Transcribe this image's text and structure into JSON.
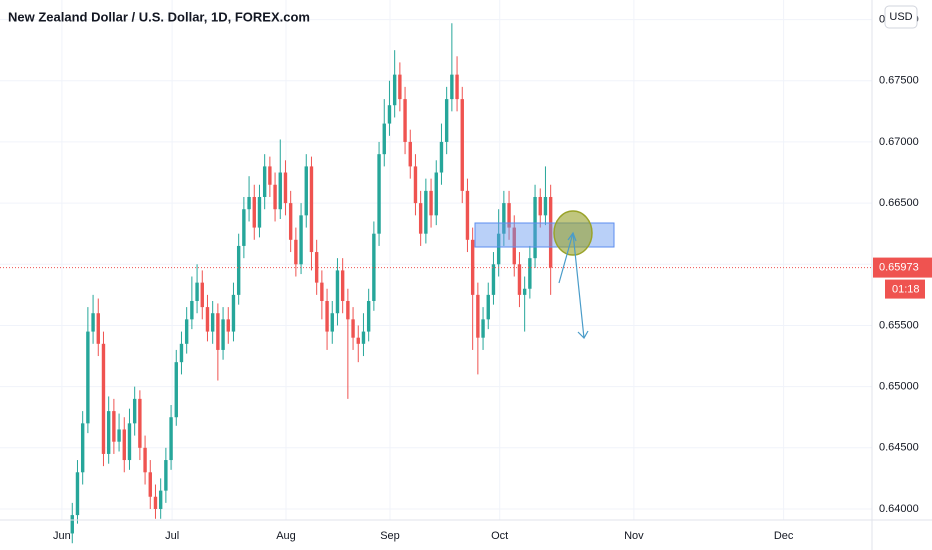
{
  "chart_data": {
    "type": "candlestick",
    "title": "New Zealand Dollar / U.S. Dollar, 1D, FOREX.com",
    "currency": "USD",
    "up_color": "#26a69a",
    "down_color": "#ef5350",
    "grid": true,
    "open": [
      0.638,
      0.6395,
      0.643,
      0.647,
      0.6545,
      0.656,
      0.6535,
      0.6445,
      0.648,
      0.6455,
      0.6465,
      0.644,
      0.647,
      0.649,
      0.645,
      0.643,
      0.641,
      0.64,
      0.6415,
      0.644,
      0.6475,
      0.652,
      0.6535,
      0.6555,
      0.657,
      0.6585,
      0.6565,
      0.6545,
      0.656,
      0.653,
      0.6555,
      0.6545,
      0.6575,
      0.6615,
      0.6645,
      0.6655,
      0.663,
      0.6655,
      0.668,
      0.6665,
      0.6645,
      0.6675,
      0.665,
      0.662,
      0.66,
      0.664,
      0.668,
      0.661,
      0.6585,
      0.657,
      0.6545,
      0.656,
      0.6595,
      0.657,
      0.6555,
      0.654,
      0.6535,
      0.6545,
      0.657,
      0.6625,
      0.669,
      0.6715,
      0.673,
      0.6755,
      0.6735,
      0.67,
      0.668,
      0.665,
      0.6625,
      0.666,
      0.664,
      0.6675,
      0.67,
      0.6735,
      0.6755,
      0.6735,
      0.666,
      0.662,
      0.6575,
      0.654,
      0.6555,
      0.6575,
      0.66,
      0.6625,
      0.665,
      0.663,
      0.66,
      0.6575,
      0.658,
      0.6605,
      0.6655,
      0.664,
      0.6655
    ],
    "high": [
      0.6405,
      0.644,
      0.648,
      0.6565,
      0.6575,
      0.6572,
      0.6545,
      0.6492,
      0.649,
      0.6478,
      0.6475,
      0.6482,
      0.65,
      0.6497,
      0.646,
      0.644,
      0.642,
      0.6425,
      0.645,
      0.6485,
      0.653,
      0.6545,
      0.6565,
      0.659,
      0.66,
      0.6595,
      0.6575,
      0.657,
      0.6568,
      0.6565,
      0.6565,
      0.6585,
      0.6625,
      0.6655,
      0.6672,
      0.6665,
      0.6665,
      0.669,
      0.6688,
      0.6675,
      0.6702,
      0.6685,
      0.666,
      0.663,
      0.665,
      0.669,
      0.6688,
      0.662,
      0.6595,
      0.658,
      0.657,
      0.6605,
      0.6605,
      0.658,
      0.6565,
      0.655,
      0.656,
      0.658,
      0.6635,
      0.67,
      0.6735,
      0.675,
      0.6775,
      0.6765,
      0.6745,
      0.671,
      0.669,
      0.666,
      0.667,
      0.667,
      0.6685,
      0.6715,
      0.6745,
      0.6797,
      0.677,
      0.6745,
      0.667,
      0.663,
      0.6585,
      0.6565,
      0.6585,
      0.661,
      0.6645,
      0.666,
      0.666,
      0.664,
      0.661,
      0.659,
      0.6615,
      0.6665,
      0.6662,
      0.668,
      0.6665
    ],
    "low": [
      0.6372,
      0.6388,
      0.642,
      0.6462,
      0.6535,
      0.6525,
      0.6435,
      0.6437,
      0.6445,
      0.6447,
      0.643,
      0.6432,
      0.646,
      0.644,
      0.642,
      0.64,
      0.6392,
      0.6392,
      0.6405,
      0.6432,
      0.6468,
      0.651,
      0.6527,
      0.6547,
      0.656,
      0.6555,
      0.6537,
      0.6535,
      0.6505,
      0.6522,
      0.6535,
      0.6537,
      0.6567,
      0.6605,
      0.6635,
      0.662,
      0.6622,
      0.6645,
      0.6655,
      0.6635,
      0.6637,
      0.664,
      0.661,
      0.659,
      0.6592,
      0.663,
      0.6595,
      0.6575,
      0.6555,
      0.653,
      0.6535,
      0.655,
      0.656,
      0.649,
      0.653,
      0.652,
      0.6525,
      0.6537,
      0.6562,
      0.6615,
      0.668,
      0.6705,
      0.672,
      0.6725,
      0.669,
      0.667,
      0.664,
      0.6615,
      0.6617,
      0.663,
      0.6632,
      0.6665,
      0.669,
      0.6725,
      0.6725,
      0.665,
      0.661,
      0.653,
      0.651,
      0.653,
      0.6547,
      0.6567,
      0.659,
      0.6615,
      0.662,
      0.659,
      0.6565,
      0.6545,
      0.6572,
      0.6597,
      0.663,
      0.6632,
      0.6575
    ],
    "close": [
      0.6395,
      0.643,
      0.647,
      0.6545,
      0.656,
      0.6535,
      0.6445,
      0.648,
      0.6455,
      0.6465,
      0.644,
      0.647,
      0.649,
      0.645,
      0.643,
      0.641,
      0.64,
      0.6415,
      0.644,
      0.6475,
      0.652,
      0.6535,
      0.6555,
      0.657,
      0.6585,
      0.6565,
      0.6545,
      0.656,
      0.653,
      0.6555,
      0.6545,
      0.6575,
      0.6615,
      0.6645,
      0.6655,
      0.663,
      0.6655,
      0.668,
      0.6665,
      0.6645,
      0.6675,
      0.665,
      0.662,
      0.66,
      0.664,
      0.668,
      0.661,
      0.6585,
      0.657,
      0.6545,
      0.656,
      0.6595,
      0.657,
      0.6555,
      0.654,
      0.6535,
      0.6545,
      0.657,
      0.6625,
      0.669,
      0.6715,
      0.673,
      0.6755,
      0.6735,
      0.67,
      0.668,
      0.665,
      0.6625,
      0.666,
      0.664,
      0.6675,
      0.67,
      0.6735,
      0.6755,
      0.6735,
      0.666,
      0.662,
      0.6575,
      0.654,
      0.6555,
      0.6575,
      0.66,
      0.6625,
      0.665,
      0.663,
      0.66,
      0.6575,
      0.658,
      0.6605,
      0.6655,
      0.664,
      0.6655,
      0.65973
    ],
    "xlim": [
      -13.9,
      153.8
    ],
    "xticks": [
      {
        "value": -2,
        "label": "Jun"
      },
      {
        "value": 19.2,
        "label": "Jul"
      },
      {
        "value": 41.1,
        "label": "Aug"
      },
      {
        "value": 61.1,
        "label": "Sep"
      },
      {
        "value": 82.2,
        "label": "Oct"
      },
      {
        "value": 108,
        "label": "Nov"
      },
      {
        "value": 136.8,
        "label": "Dec"
      }
    ],
    "ylim": [
      0.6391,
      0.6816
    ],
    "yticks": [
      {
        "value": 0.64,
        "label": "0.64000"
      },
      {
        "value": 0.645,
        "label": "0.64500"
      },
      {
        "value": 0.65,
        "label": "0.65000"
      },
      {
        "value": 0.655,
        "label": "0.65500"
      },
      {
        "value": 0.66,
        "label": "0.66000"
      },
      {
        "value": 0.665,
        "label": "0.66500"
      },
      {
        "value": 0.67,
        "label": "0.67000"
      },
      {
        "value": 0.675,
        "label": "0.67500"
      },
      {
        "value": 0.68,
        "label": "0.68000"
      }
    ],
    "last_price": {
      "value": 0.65973,
      "label": "0.65973"
    },
    "countdown": "01:18"
  }
}
